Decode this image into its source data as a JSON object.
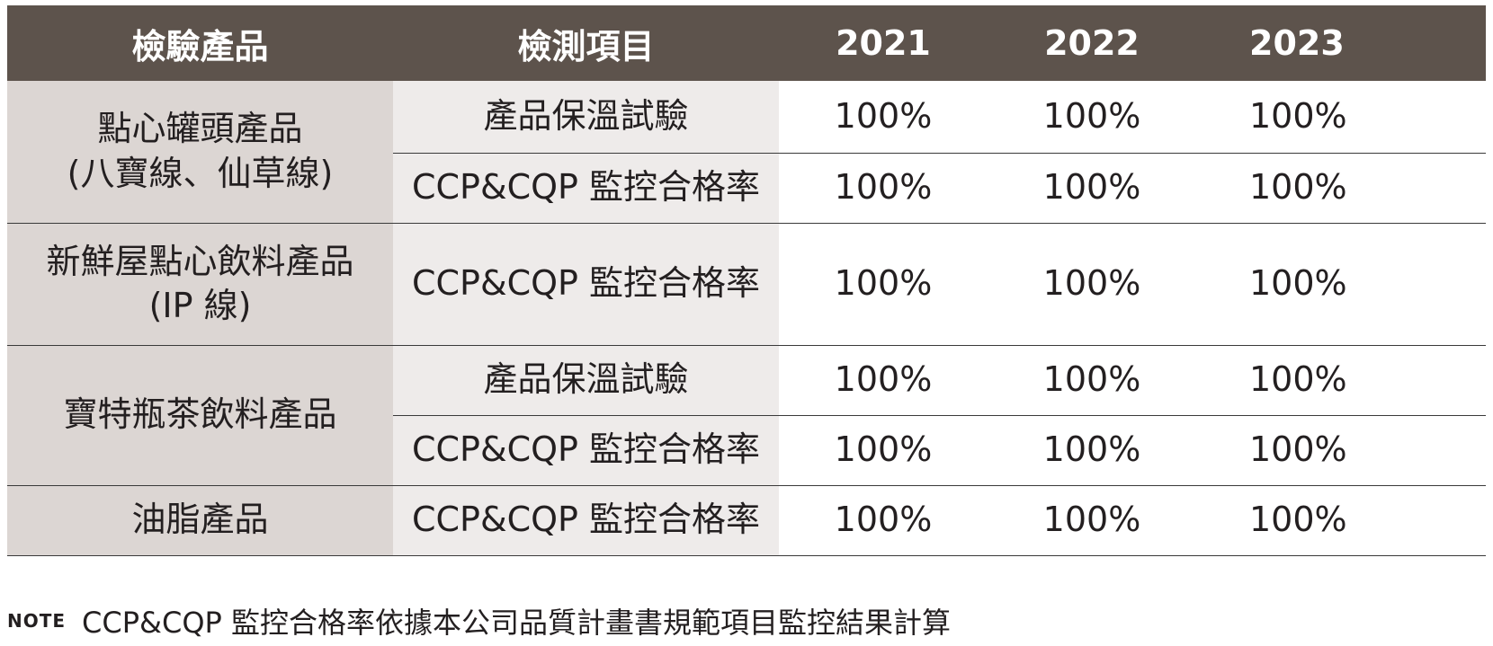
{
  "header": {
    "c0": "檢驗產品",
    "c1": "檢測項目",
    "y1": "2021",
    "y2": "2022",
    "y3": "2023"
  },
  "rows": [
    {
      "product_line1": "點心罐頭產品",
      "product_line2": "(八寶線、仙草線)",
      "items": [
        {
          "test": "產品保溫試驗",
          "v2021": "100%",
          "v2022": "100%",
          "v2023": "100%"
        },
        {
          "test": "CCP&CQP 監控合格率",
          "v2021": "100%",
          "v2022": "100%",
          "v2023": "100%"
        }
      ]
    },
    {
      "product_line1": "新鮮屋點心飲料產品",
      "product_line2": "(IP 線)",
      "items": [
        {
          "test": "CCP&CQP 監控合格率",
          "v2021": "100%",
          "v2022": "100%",
          "v2023": "100%"
        }
      ]
    },
    {
      "product_line1": "寶特瓶茶飲料產品",
      "items": [
        {
          "test": "產品保溫試驗",
          "v2021": "100%",
          "v2022": "100%",
          "v2023": "100%"
        },
        {
          "test": "CCP&CQP 監控合格率",
          "v2021": "100%",
          "v2022": "100%",
          "v2023": "100%"
        }
      ]
    },
    {
      "product_line1": "油脂產品",
      "items": [
        {
          "test": "CCP&CQP 監控合格率",
          "v2021": "100%",
          "v2022": "100%",
          "v2023": "100%"
        }
      ]
    }
  ],
  "note": {
    "tag": "NOTE",
    "text": "CCP&CQP 監控合格率依據本公司品質計畫書規範項目監控結果計算"
  }
}
